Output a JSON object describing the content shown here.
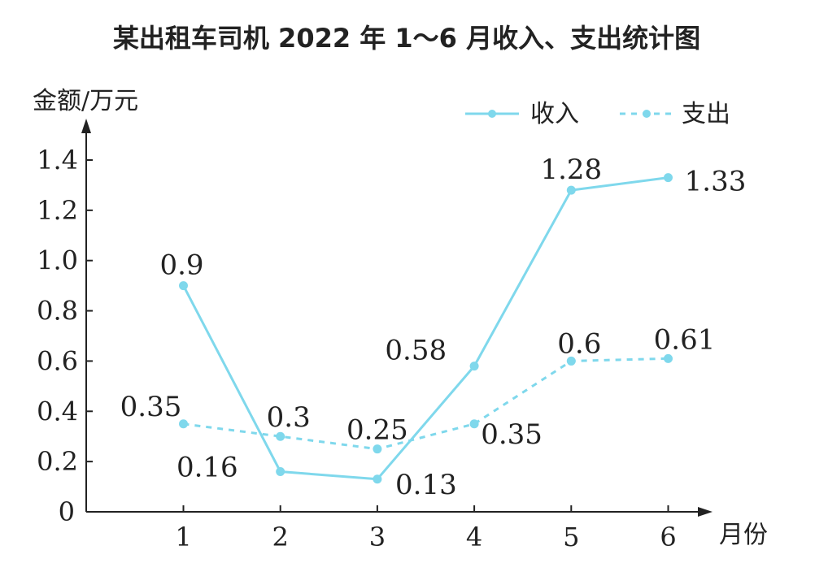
{
  "chart_data": {
    "type": "line",
    "title": "某出租车司机 2022 年 1～6 月收入、支出统计图",
    "xlabel": "月份",
    "ylabel": "金额/万元",
    "categories": [
      "1",
      "2",
      "3",
      "4",
      "5",
      "6"
    ],
    "yticks": [
      "0",
      "0.2",
      "0.4",
      "0.6",
      "0.8",
      "1.0",
      "1.2",
      "1.4"
    ],
    "ylim": [
      0,
      1.4
    ],
    "grid": false,
    "legend_position": "top-right",
    "series": [
      {
        "name": "收入",
        "values": [
          0.9,
          0.16,
          0.13,
          0.58,
          1.28,
          1.33
        ],
        "labels": [
          "0.9",
          "0.16",
          "0.13",
          "0.58",
          "1.28",
          "1.33"
        ],
        "line_style": "solid",
        "color": "#7fd8ec"
      },
      {
        "name": "支出",
        "values": [
          0.35,
          0.3,
          0.25,
          0.35,
          0.6,
          0.61
        ],
        "labels": [
          "0.35",
          "0.3",
          "0.25",
          "0.35",
          "0.6",
          "0.61"
        ],
        "line_style": "dashed",
        "color": "#7fd8ec"
      }
    ]
  }
}
